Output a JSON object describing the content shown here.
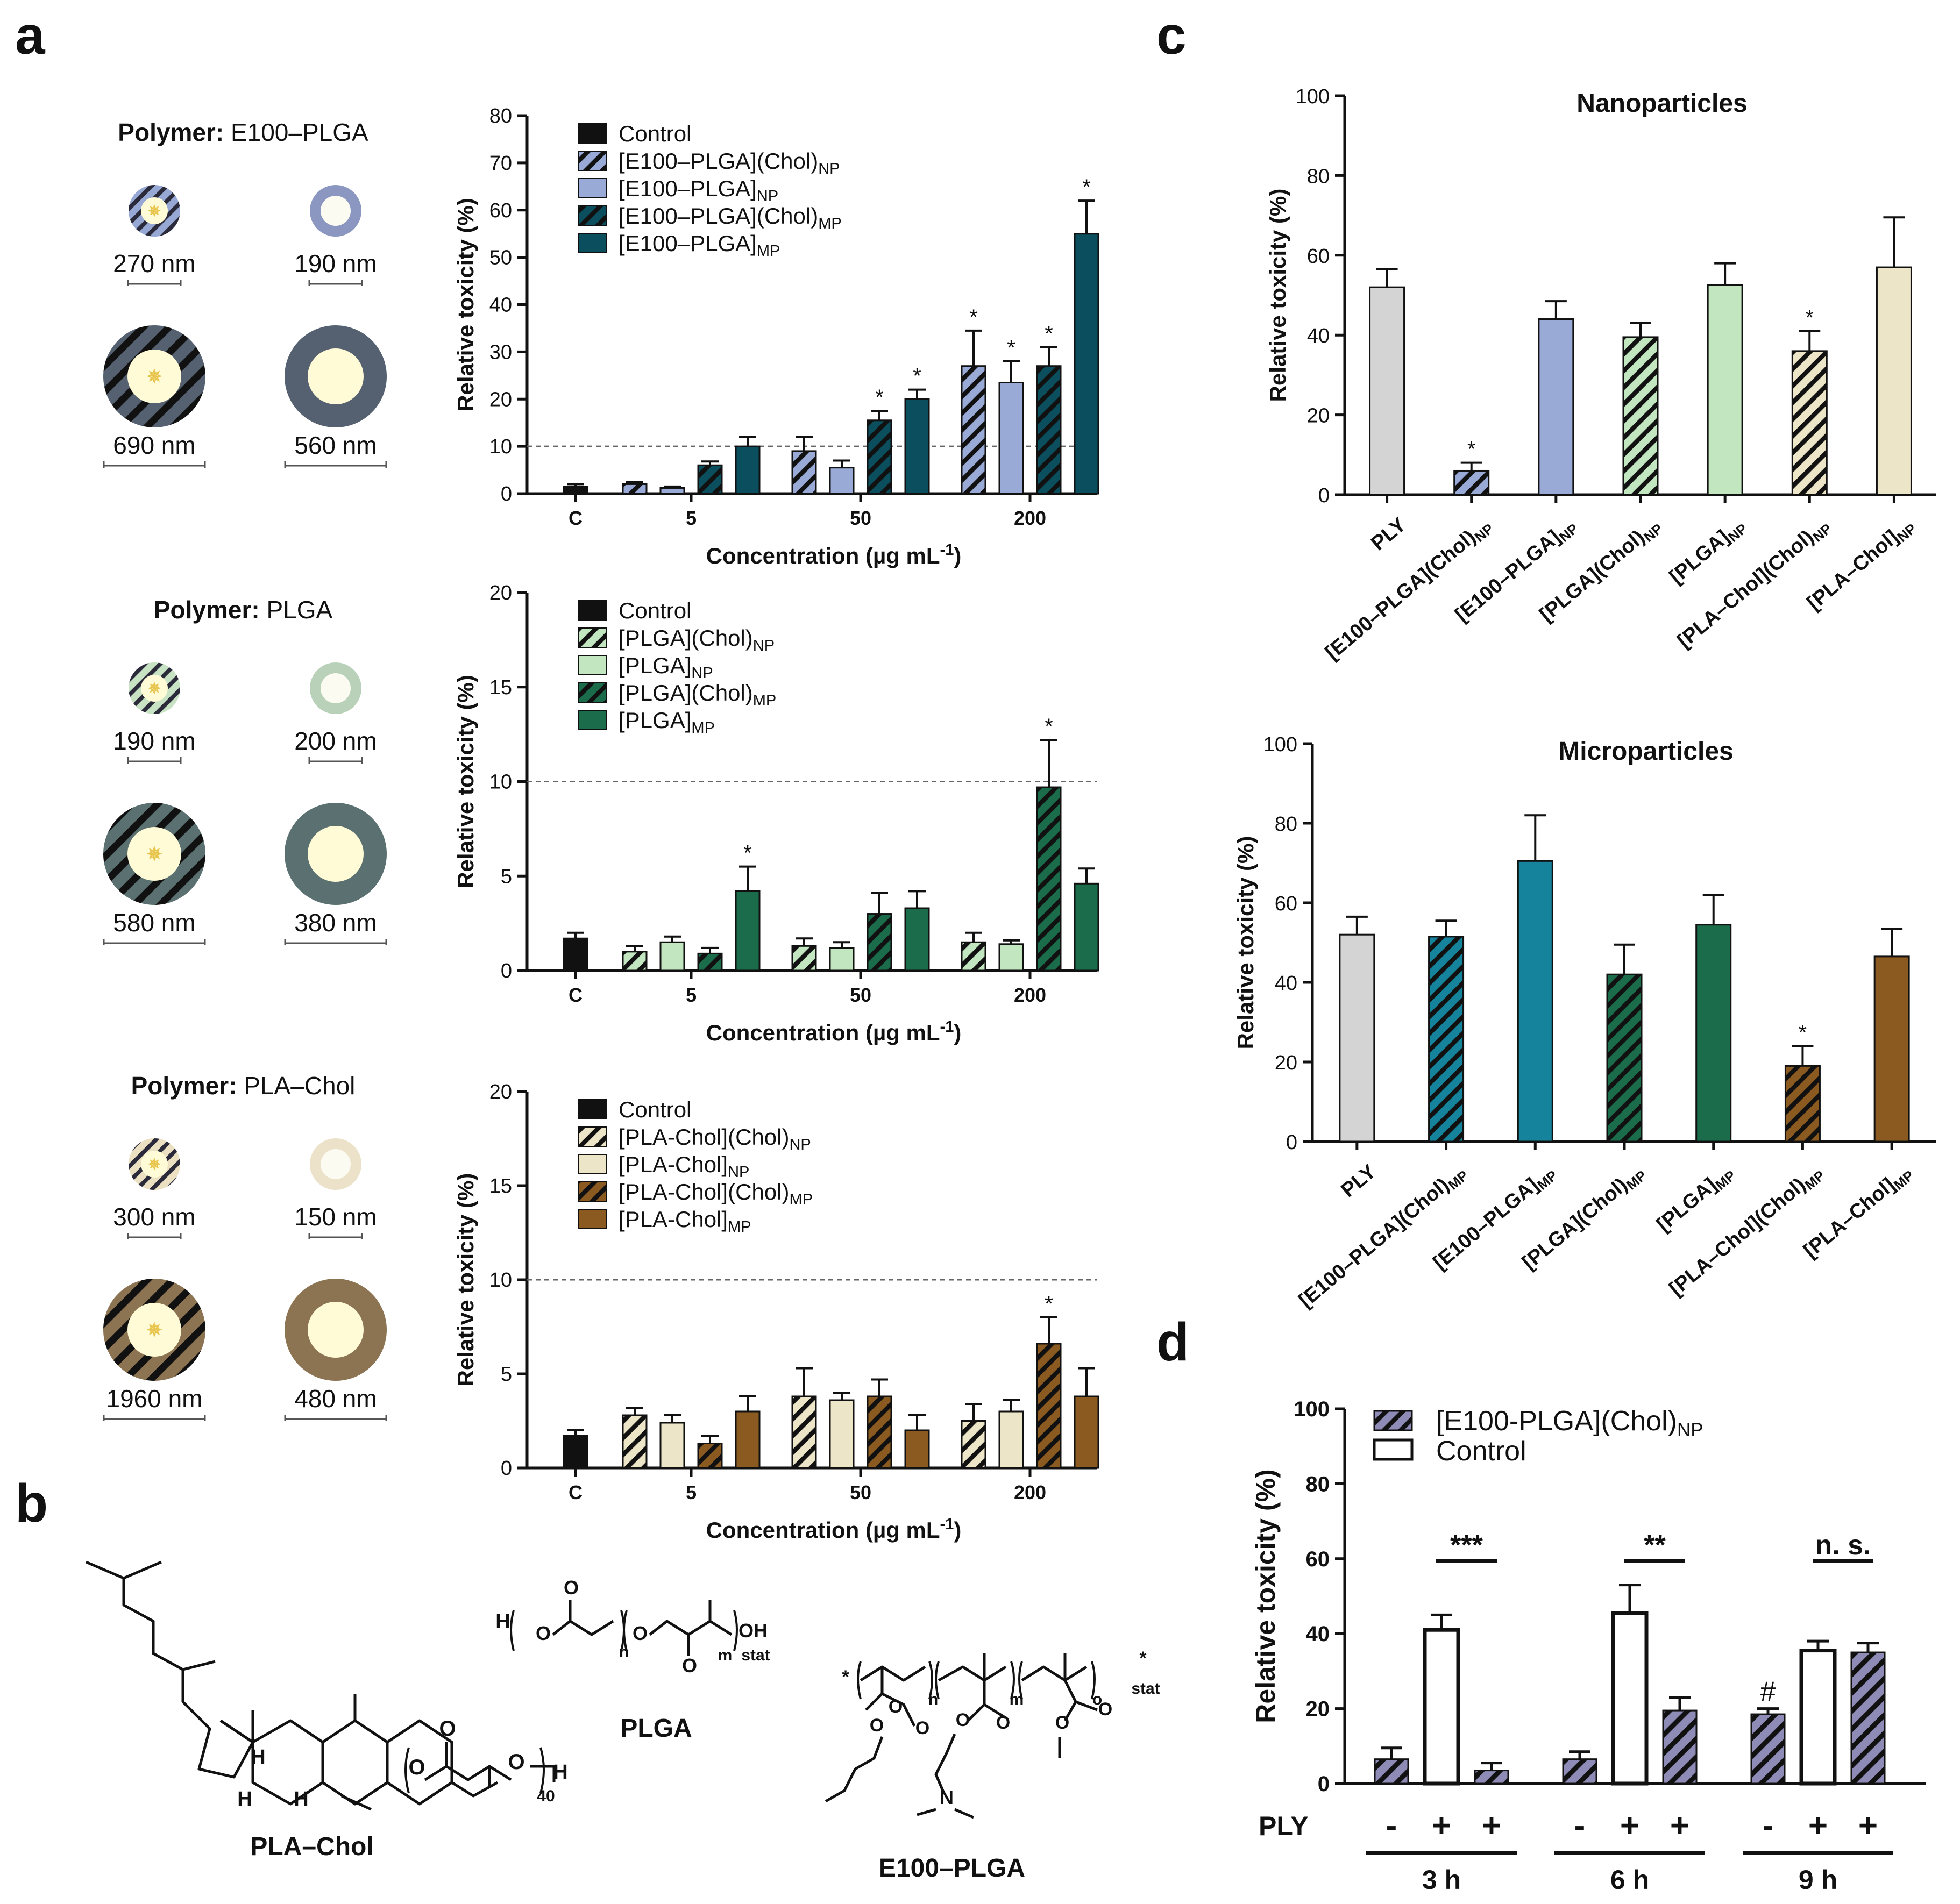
{
  "panels": {
    "a": {
      "label": "a",
      "polymer_prefix": "Polymer:",
      "rows": [
        {
          "polymer": "E100–PLGA",
          "colors": {
            "shell": "#556170",
            "core": "#fffbd6",
            "np": "#8b97c0",
            "np_core": "#fbfbf2",
            "stripe_np": "#96a8d3"
          },
          "sizes": [
            "270 nm",
            "190 nm",
            "690 nm",
            "560 nm"
          ]
        },
        {
          "polymer": "PLGA",
          "colors": {
            "shell": "#5b7070",
            "core": "#fffbd6",
            "np": "#b8d1b8",
            "np_core": "#fbfbf2",
            "stripe_np": "#c7e3c3"
          },
          "sizes": [
            "190 nm",
            "200 nm",
            "580 nm",
            "380 nm"
          ]
        },
        {
          "polymer": "PLA–Chol",
          "colors": {
            "shell": "#8c7453",
            "core": "#fffbd6",
            "np": "#ece2c9",
            "np_core": "#fbfbf2",
            "stripe_np": "#ebe1c2"
          },
          "sizes": [
            "300 nm",
            "150 nm",
            "1960 nm",
            "480 nm"
          ]
        }
      ]
    },
    "b": {
      "label": "b",
      "structures": [
        "PLA–Chol",
        "PLGA",
        "E100–PLGA"
      ],
      "atoms": {
        "H": "H",
        "O": "O",
        "OH": "OH",
        "N": "N",
        "n": "n",
        "m": "m",
        "o": "o",
        "stat": "stat",
        "repeat": "40",
        "star": "*"
      }
    },
    "c": {
      "label": "c"
    },
    "d": {
      "label": "d"
    }
  },
  "chart_data": [
    {
      "id": "a1",
      "type": "bar",
      "ylabel": "Relative toxicity (%)",
      "xlabel": "Concentration (µg mL⁻¹)",
      "ylim": [
        0,
        80
      ],
      "yticks": [
        0,
        10,
        20,
        30,
        40,
        50,
        60,
        70,
        80
      ],
      "threshold": 10,
      "categories": [
        "C",
        "5",
        "50",
        "200"
      ],
      "legend": [
        "Control",
        "[E100–PLGA](Chol)NP",
        "[E100–PLGA]NP",
        "[E100–PLGA](Chol)MP",
        "[E100–PLGA]MP"
      ],
      "series": [
        {
          "name": "Control",
          "color": "#111111",
          "hatch": false,
          "values": [
            1.5,
            null,
            null,
            null
          ],
          "errors": [
            0.5,
            null,
            null,
            null
          ],
          "sig": [
            false,
            false,
            false,
            false
          ]
        },
        {
          "name": "[E100–PLGA](Chol)NP",
          "color": "#9aaad6",
          "hatch": true,
          "values": [
            null,
            2,
            9,
            27
          ],
          "errors": [
            null,
            0.5,
            3,
            7.5
          ],
          "sig": [
            false,
            false,
            false,
            true
          ]
        },
        {
          "name": "[E100–PLGA]NP",
          "color": "#9aaad6",
          "hatch": false,
          "values": [
            null,
            1.2,
            5.5,
            23.5
          ],
          "errors": [
            null,
            0.3,
            1.5,
            4.5
          ],
          "sig": [
            false,
            false,
            false,
            true
          ]
        },
        {
          "name": "[E100–PLGA](Chol)MP",
          "color": "#0b4f5e",
          "hatch": true,
          "values": [
            null,
            6,
            15.5,
            27
          ],
          "errors": [
            null,
            0.8,
            2,
            4
          ],
          "sig": [
            false,
            false,
            true,
            true
          ]
        },
        {
          "name": "[E100–PLGA]MP",
          "color": "#0b4f5e",
          "hatch": false,
          "values": [
            null,
            10,
            20,
            55
          ],
          "errors": [
            null,
            2,
            2,
            7
          ],
          "sig": [
            false,
            false,
            true,
            true
          ]
        }
      ]
    },
    {
      "id": "a2",
      "type": "bar",
      "ylabel": "Relative toxicity (%)",
      "xlabel": "Concentration (µg mL⁻¹)",
      "ylim": [
        0,
        20
      ],
      "yticks": [
        0,
        5,
        10,
        15,
        20
      ],
      "threshold": 10,
      "categories": [
        "C",
        "5",
        "50",
        "200"
      ],
      "legend": [
        "Control",
        "[PLGA](Chol)NP",
        "[PLGA]NP",
        "[PLGA](Chol)MP",
        "[PLGA]MP"
      ],
      "series": [
        {
          "name": "Control",
          "color": "#111111",
          "hatch": false,
          "values": [
            1.7,
            null,
            null,
            null
          ],
          "errors": [
            0.3,
            null,
            null,
            null
          ],
          "sig": [
            false,
            false,
            false,
            false
          ]
        },
        {
          "name": "[PLGA](Chol)NP",
          "color": "#c2e7c0",
          "hatch": true,
          "values": [
            null,
            1.0,
            1.3,
            1.5
          ],
          "errors": [
            null,
            0.3,
            0.4,
            0.5
          ],
          "sig": [
            false,
            false,
            false,
            false
          ]
        },
        {
          "name": "[PLGA]NP",
          "color": "#c2e7c0",
          "hatch": false,
          "values": [
            null,
            1.5,
            1.2,
            1.4
          ],
          "errors": [
            null,
            0.3,
            0.3,
            0.2
          ],
          "sig": [
            false,
            false,
            false,
            false
          ]
        },
        {
          "name": "[PLGA](Chol)MP",
          "color": "#1a6c4b",
          "hatch": true,
          "values": [
            null,
            0.9,
            3.0,
            9.7
          ],
          "errors": [
            null,
            0.3,
            1.1,
            2.5
          ],
          "sig": [
            false,
            false,
            false,
            true
          ]
        },
        {
          "name": "[PLGA]MP",
          "color": "#1a6c4b",
          "hatch": false,
          "values": [
            null,
            4.2,
            3.3,
            4.6
          ],
          "errors": [
            null,
            1.3,
            0.9,
            0.8
          ],
          "sig": [
            false,
            true,
            false,
            false
          ]
        }
      ]
    },
    {
      "id": "a3",
      "type": "bar",
      "ylabel": "Relative toxicity (%)",
      "xlabel": "Concentration (µg mL⁻¹)",
      "ylim": [
        0,
        20
      ],
      "yticks": [
        0,
        5,
        10,
        15,
        20
      ],
      "threshold": 10,
      "categories": [
        "C",
        "5",
        "50",
        "200"
      ],
      "legend": [
        "Control",
        "[PLA-Chol](Chol)NP",
        "[PLA-Chol]NP",
        "[PLA-Chol](Chol)MP",
        "[PLA-Chol]MP"
      ],
      "series": [
        {
          "name": "Control",
          "color": "#111111",
          "hatch": false,
          "values": [
            1.7,
            null,
            null,
            null
          ],
          "errors": [
            0.3,
            null,
            null,
            null
          ],
          "sig": [
            false,
            false,
            false,
            false
          ]
        },
        {
          "name": "[PLA-Chol](Chol)NP",
          "color": "#ede5c7",
          "hatch": true,
          "values": [
            null,
            2.8,
            3.8,
            2.5
          ],
          "errors": [
            null,
            0.4,
            1.5,
            0.9
          ],
          "sig": [
            false,
            false,
            false,
            false
          ]
        },
        {
          "name": "[PLA-Chol]NP",
          "color": "#ede5c7",
          "hatch": false,
          "values": [
            null,
            2.4,
            3.6,
            3.0
          ],
          "errors": [
            null,
            0.4,
            0.4,
            0.6
          ],
          "sig": [
            false,
            false,
            false,
            false
          ]
        },
        {
          "name": "[PLA-Chol](Chol)MP",
          "color": "#8b5a20",
          "hatch": true,
          "values": [
            null,
            1.3,
            3.8,
            6.6
          ],
          "errors": [
            null,
            0.4,
            0.9,
            1.4
          ],
          "sig": [
            false,
            false,
            false,
            true
          ]
        },
        {
          "name": "[PLA-Chol]MP",
          "color": "#8b5a20",
          "hatch": false,
          "values": [
            null,
            3.0,
            2.0,
            3.8
          ],
          "errors": [
            null,
            0.8,
            0.8,
            1.5
          ],
          "sig": [
            false,
            false,
            false,
            false
          ]
        }
      ]
    },
    {
      "id": "c1",
      "type": "bar",
      "title": "Nanoparticles",
      "ylabel": "Relative toxicity (%)",
      "ylim": [
        0,
        100
      ],
      "yticks": [
        0,
        20,
        40,
        60,
        80,
        100
      ],
      "categories": [
        "PLY",
        "[E100–PLGA](Chol)NP",
        "[E100–PLGA]NP",
        "[PLGA](Chol)NP",
        "[PLGA]NP",
        "[PLA–Chol](Chol)NP",
        "[PLA–Chol]NP"
      ],
      "values": [
        52,
        6,
        44,
        39.5,
        52.5,
        36,
        57
      ],
      "errors": [
        4.5,
        2,
        4.5,
        3.5,
        5.5,
        5,
        12.5
      ],
      "colors": [
        "#d4d4d4",
        "#9aaad6",
        "#9aaad6",
        "#c2e7c0",
        "#c2e7c0",
        "#ede5c7",
        "#ede5c7"
      ],
      "hatch": [
        false,
        true,
        false,
        true,
        false,
        true,
        false
      ],
      "sig": [
        false,
        true,
        false,
        false,
        false,
        true,
        false
      ]
    },
    {
      "id": "c2",
      "type": "bar",
      "title": "Microparticles",
      "ylabel": "Relative toxicity (%)",
      "ylim": [
        0,
        100
      ],
      "yticks": [
        0,
        20,
        40,
        60,
        80,
        100
      ],
      "categories": [
        "PLY",
        "[E100–PLGA](Chol)MP",
        "[E100–PLGA]MP",
        "[PLGA](Chol)MP",
        "[PLGA]MP",
        "[PLA–Chol](Chol)MP",
        "[PLA–Chol]MP"
      ],
      "values": [
        52,
        51.5,
        70.5,
        42,
        54.5,
        19,
        46.5
      ],
      "errors": [
        4.5,
        4,
        11.5,
        7.5,
        7.5,
        5,
        7
      ],
      "colors": [
        "#d4d4d4",
        "#15839b",
        "#15839b",
        "#1a6c4b",
        "#1a6c4b",
        "#8b5a20",
        "#8b5a20"
      ],
      "hatch": [
        false,
        true,
        false,
        true,
        false,
        true,
        false
      ],
      "sig": [
        false,
        false,
        false,
        false,
        false,
        true,
        false
      ]
    },
    {
      "id": "d",
      "type": "bar",
      "ylabel": "Relative toxicity (%)",
      "ylim": [
        0,
        100
      ],
      "yticks": [
        0,
        20,
        40,
        60,
        80,
        100
      ],
      "legend": [
        "[E100-PLGA](Chol)NP",
        "Control"
      ],
      "row_label": "PLY",
      "groups": [
        {
          "label": "3 h",
          "ply": [
            "-",
            "+",
            "+"
          ],
          "values": [
            6.5,
            41,
            3.5
          ],
          "errors": [
            3,
            4,
            2
          ],
          "sig_label": "***",
          "mark": [
            "",
            "",
            ""
          ]
        },
        {
          "label": "6 h",
          "ply": [
            "-",
            "+",
            "+"
          ],
          "values": [
            6.5,
            45.5,
            19.5
          ],
          "errors": [
            2,
            7.5,
            3.5
          ],
          "sig_label": "**",
          "mark": [
            "",
            "",
            ""
          ]
        },
        {
          "label": "9 h",
          "ply": [
            "-",
            "+",
            "+"
          ],
          "values": [
            18.5,
            35.5,
            35
          ],
          "errors": [
            1.5,
            2.5,
            2.5
          ],
          "sig_label": "n. s.",
          "mark": [
            "#",
            "",
            ""
          ]
        }
      ],
      "bar_styles": [
        "hatch",
        "open",
        "hatch"
      ],
      "hatch_color": "#8e8cb6"
    }
  ]
}
